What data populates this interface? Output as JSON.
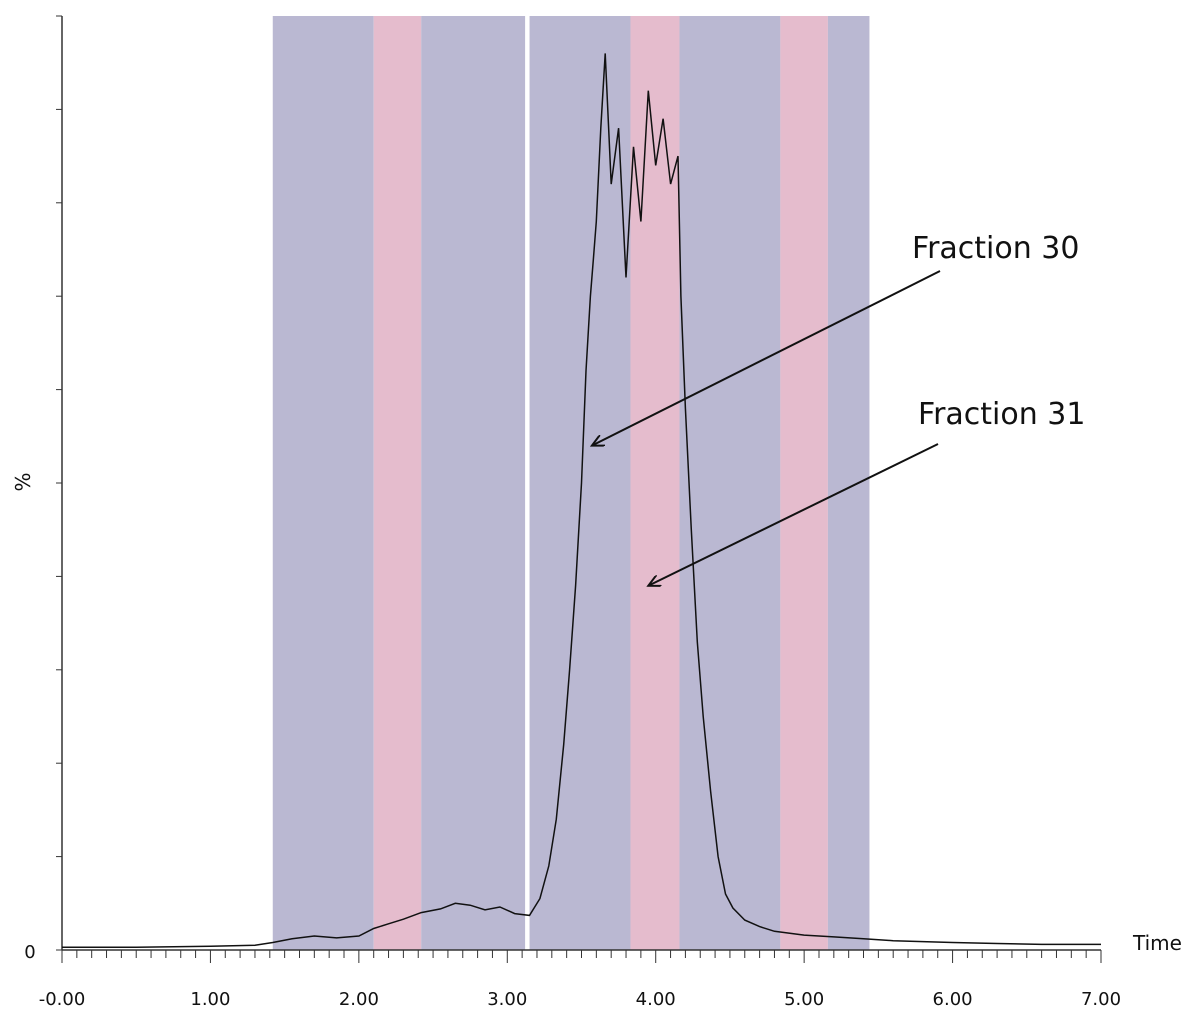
{
  "chart_data": {
    "type": "line",
    "xlabel": "Time",
    "ylabel": "%",
    "xlim": [
      0,
      7
    ],
    "x_tick_labels": [
      "-0.00",
      "1.00",
      "2.00",
      "3.00",
      "4.00",
      "5.00",
      "6.00",
      "7.00"
    ],
    "x_tick_values": [
      0,
      1,
      2,
      3,
      4,
      5,
      6,
      7
    ],
    "y_tick_labels": [
      "0"
    ],
    "ylim": [
      0,
      100
    ],
    "bands": [
      {
        "start": 1.42,
        "end": 2.1,
        "color": "#bab8d2",
        "kind": "blue"
      },
      {
        "start": 2.1,
        "end": 2.42,
        "color": "#e5bccd",
        "kind": "pink"
      },
      {
        "start": 2.42,
        "end": 3.12,
        "color": "#bab8d2",
        "kind": "blue"
      },
      {
        "start": 3.15,
        "end": 3.83,
        "color": "#bab8d2",
        "kind": "blue"
      },
      {
        "start": 3.83,
        "end": 4.16,
        "color": "#e5bccd",
        "kind": "pink"
      },
      {
        "start": 4.16,
        "end": 4.84,
        "color": "#bab8d2",
        "kind": "blue"
      },
      {
        "start": 4.84,
        "end": 5.16,
        "color": "#e5bccd",
        "kind": "pink"
      },
      {
        "start": 5.16,
        "end": 5.44,
        "color": "#bab8d2",
        "kind": "blue"
      }
    ],
    "series": [
      {
        "color": "#111111",
        "points": [
          [
            0.0,
            0.3
          ],
          [
            0.5,
            0.3
          ],
          [
            1.0,
            0.4
          ],
          [
            1.3,
            0.5
          ],
          [
            1.42,
            0.8
          ],
          [
            1.55,
            1.2
          ],
          [
            1.7,
            1.5
          ],
          [
            1.85,
            1.3
          ],
          [
            2.0,
            1.5
          ],
          [
            2.1,
            2.3
          ],
          [
            2.2,
            2.8
          ],
          [
            2.3,
            3.3
          ],
          [
            2.42,
            4.0
          ],
          [
            2.55,
            4.4
          ],
          [
            2.65,
            5.0
          ],
          [
            2.75,
            4.8
          ],
          [
            2.85,
            4.3
          ],
          [
            2.95,
            4.6
          ],
          [
            3.05,
            3.9
          ],
          [
            3.15,
            3.7
          ],
          [
            3.22,
            5.5
          ],
          [
            3.28,
            9.0
          ],
          [
            3.33,
            14.0
          ],
          [
            3.38,
            22.0
          ],
          [
            3.42,
            30.0
          ],
          [
            3.46,
            39.0
          ],
          [
            3.5,
            50.0
          ],
          [
            3.53,
            62.0
          ],
          [
            3.56,
            70.0
          ],
          [
            3.58,
            74.0
          ],
          [
            3.6,
            78.0
          ],
          [
            3.63,
            88.0
          ],
          [
            3.66,
            96.0
          ],
          [
            3.7,
            82.0
          ],
          [
            3.75,
            88.0
          ],
          [
            3.8,
            72.0
          ],
          [
            3.85,
            86.0
          ],
          [
            3.9,
            78.0
          ],
          [
            3.95,
            92.0
          ],
          [
            4.0,
            84.0
          ],
          [
            4.05,
            89.0
          ],
          [
            4.1,
            82.0
          ],
          [
            4.15,
            85.0
          ],
          [
            4.17,
            70.0
          ],
          [
            4.2,
            58.0
          ],
          [
            4.24,
            45.0
          ],
          [
            4.28,
            33.0
          ],
          [
            4.32,
            25.0
          ],
          [
            4.37,
            17.0
          ],
          [
            4.42,
            10.0
          ],
          [
            4.47,
            6.0
          ],
          [
            4.52,
            4.5
          ],
          [
            4.6,
            3.2
          ],
          [
            4.7,
            2.5
          ],
          [
            4.8,
            2.0
          ],
          [
            5.0,
            1.6
          ],
          [
            5.2,
            1.4
          ],
          [
            5.4,
            1.2
          ],
          [
            5.6,
            1.0
          ],
          [
            5.8,
            0.9
          ],
          [
            6.0,
            0.8
          ],
          [
            6.3,
            0.7
          ],
          [
            6.6,
            0.6
          ],
          [
            7.0,
            0.6
          ]
        ]
      }
    ],
    "annotations": [
      {
        "text": "Fraction 30",
        "target": [
          3.57,
          54
        ]
      },
      {
        "text": "Fraction 31",
        "target": [
          3.95,
          39
        ]
      }
    ]
  }
}
